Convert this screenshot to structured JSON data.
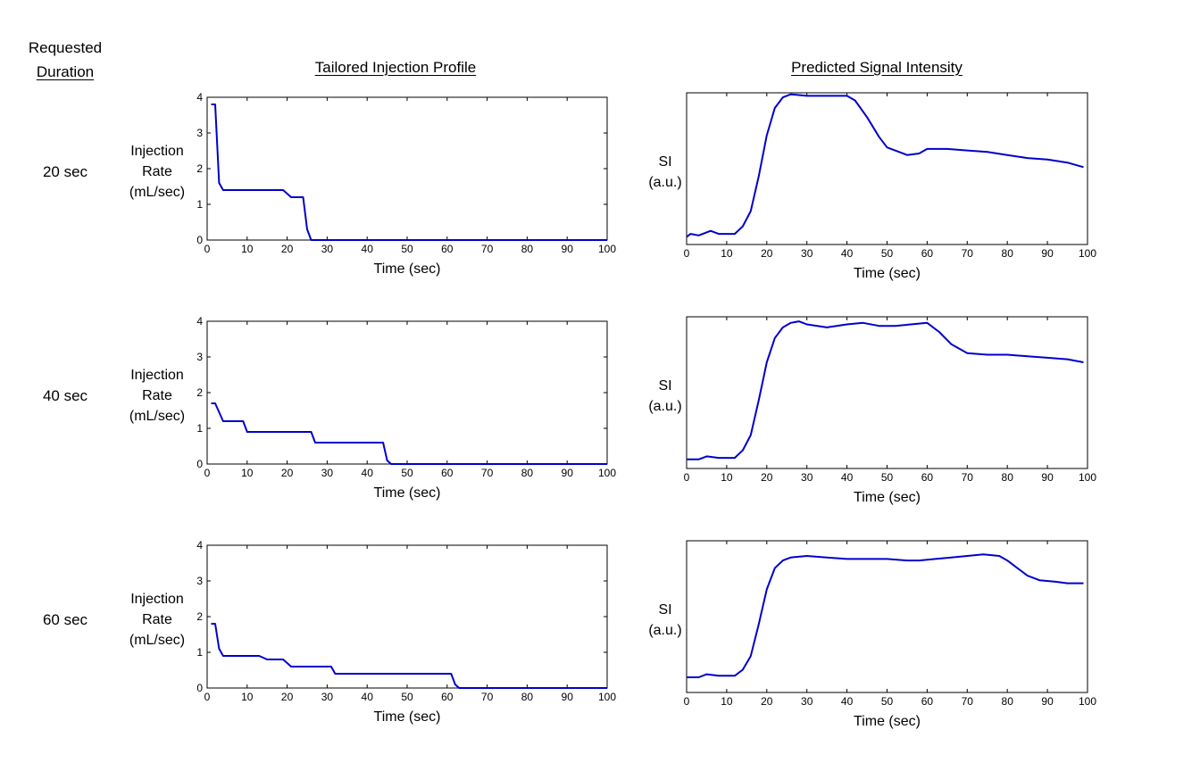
{
  "headings": {
    "requested_line1": "Requested",
    "requested_line2": "Duration",
    "injection_profile": "Tailored Injection Profile",
    "signal_intensity": "Predicted Signal Intensity"
  },
  "rows": [
    {
      "duration_label": "20 sec"
    },
    {
      "duration_label": "40 sec"
    },
    {
      "duration_label": "60 sec"
    }
  ],
  "injection_ylabel": [
    "Injection",
    "Rate",
    "(mL/sec)"
  ],
  "si_ylabel": [
    "SI",
    "(a.u.)"
  ],
  "chart_data": [
    {
      "id": "injection-20",
      "type": "line",
      "series_color": "#0000cc",
      "xlabel": "Time (sec)",
      "ylabel": "Injection Rate (mL/sec)",
      "xlim": [
        0,
        100
      ],
      "ylim": [
        0,
        4
      ],
      "xticks": [
        0,
        10,
        20,
        30,
        40,
        50,
        60,
        70,
        80,
        90,
        100
      ],
      "yticks": [
        0,
        1,
        2,
        3,
        4
      ],
      "x": [
        1,
        2,
        3,
        4,
        19,
        21,
        24,
        25,
        26,
        100
      ],
      "y": [
        3.8,
        3.8,
        1.6,
        1.4,
        1.4,
        1.2,
        1.2,
        0.3,
        0,
        0
      ]
    },
    {
      "id": "injection-40",
      "type": "line",
      "series_color": "#0000cc",
      "xlabel": "Time (sec)",
      "ylabel": "Injection Rate (mL/sec)",
      "xlim": [
        0,
        100
      ],
      "ylim": [
        0,
        4
      ],
      "xticks": [
        0,
        10,
        20,
        30,
        40,
        50,
        60,
        70,
        80,
        90,
        100
      ],
      "yticks": [
        0,
        1,
        2,
        3,
        4
      ],
      "x": [
        1,
        2,
        4,
        9,
        10,
        26,
        27,
        44,
        45,
        46,
        100
      ],
      "y": [
        1.7,
        1.7,
        1.2,
        1.2,
        0.9,
        0.9,
        0.6,
        0.6,
        0.1,
        0,
        0
      ]
    },
    {
      "id": "injection-60",
      "type": "line",
      "series_color": "#0000cc",
      "xlabel": "Time (sec)",
      "ylabel": "Injection Rate (mL/sec)",
      "xlim": [
        0,
        100
      ],
      "ylim": [
        0,
        4
      ],
      "xticks": [
        0,
        10,
        20,
        30,
        40,
        50,
        60,
        70,
        80,
        90,
        100
      ],
      "yticks": [
        0,
        1,
        2,
        3,
        4
      ],
      "x": [
        1,
        2,
        3,
        4,
        13,
        15,
        19,
        21,
        31,
        32,
        61,
        62,
        63,
        100
      ],
      "y": [
        1.8,
        1.8,
        1.1,
        0.9,
        0.9,
        0.8,
        0.8,
        0.6,
        0.6,
        0.4,
        0.4,
        0.1,
        0,
        0
      ]
    },
    {
      "id": "signal-20",
      "type": "line",
      "series_color": "#0000cc",
      "xlabel": "Time (sec)",
      "ylabel": "SI (a.u.)",
      "xlim": [
        0,
        100
      ],
      "ylim": [
        0,
        1
      ],
      "xticks": [
        0,
        10,
        20,
        30,
        40,
        50,
        60,
        70,
        80,
        90,
        100
      ],
      "yticks": [],
      "x": [
        0,
        1,
        3,
        6,
        8,
        12,
        14,
        16,
        18,
        20,
        22,
        24,
        26,
        30,
        35,
        40,
        42,
        45,
        48,
        50,
        55,
        58,
        60,
        65,
        70,
        75,
        80,
        85,
        90,
        95,
        99
      ],
      "y": [
        0.05,
        0.07,
        0.06,
        0.09,
        0.07,
        0.07,
        0.12,
        0.22,
        0.45,
        0.72,
        0.9,
        0.97,
        0.99,
        0.98,
        0.98,
        0.98,
        0.95,
        0.84,
        0.71,
        0.64,
        0.59,
        0.6,
        0.63,
        0.63,
        0.62,
        0.61,
        0.59,
        0.57,
        0.56,
        0.54,
        0.51
      ]
    },
    {
      "id": "signal-40",
      "type": "line",
      "series_color": "#0000cc",
      "xlabel": "Time (sec)",
      "ylabel": "SI (a.u.)",
      "xlim": [
        0,
        100
      ],
      "ylim": [
        0,
        1
      ],
      "xticks": [
        0,
        10,
        20,
        30,
        40,
        50,
        60,
        70,
        80,
        90,
        100
      ],
      "yticks": [],
      "x": [
        0,
        3,
        5,
        8,
        12,
        14,
        16,
        18,
        20,
        22,
        24,
        26,
        28,
        30,
        35,
        40,
        44,
        48,
        52,
        56,
        60,
        63,
        66,
        70,
        75,
        80,
        85,
        90,
        95,
        99
      ],
      "y": [
        0.06,
        0.06,
        0.08,
        0.07,
        0.07,
        0.12,
        0.22,
        0.45,
        0.7,
        0.86,
        0.93,
        0.96,
        0.97,
        0.95,
        0.93,
        0.95,
        0.96,
        0.94,
        0.94,
        0.95,
        0.96,
        0.9,
        0.82,
        0.76,
        0.75,
        0.75,
        0.74,
        0.73,
        0.72,
        0.7
      ]
    },
    {
      "id": "signal-60",
      "type": "line",
      "series_color": "#0000cc",
      "xlabel": "Time (sec)",
      "ylabel": "SI (a.u.)",
      "xlim": [
        0,
        100
      ],
      "ylim": [
        0,
        1
      ],
      "xticks": [
        0,
        10,
        20,
        30,
        40,
        50,
        60,
        70,
        80,
        90,
        100
      ],
      "yticks": [],
      "x": [
        0,
        3,
        5,
        8,
        12,
        14,
        16,
        18,
        20,
        22,
        24,
        26,
        30,
        35,
        40,
        45,
        50,
        55,
        58,
        62,
        66,
        70,
        74,
        78,
        80,
        85,
        88,
        92,
        95,
        99
      ],
      "y": [
        0.1,
        0.1,
        0.12,
        0.11,
        0.11,
        0.15,
        0.24,
        0.45,
        0.68,
        0.82,
        0.87,
        0.89,
        0.9,
        0.89,
        0.88,
        0.88,
        0.88,
        0.87,
        0.87,
        0.88,
        0.89,
        0.9,
        0.91,
        0.9,
        0.87,
        0.77,
        0.74,
        0.73,
        0.72,
        0.72
      ]
    }
  ]
}
